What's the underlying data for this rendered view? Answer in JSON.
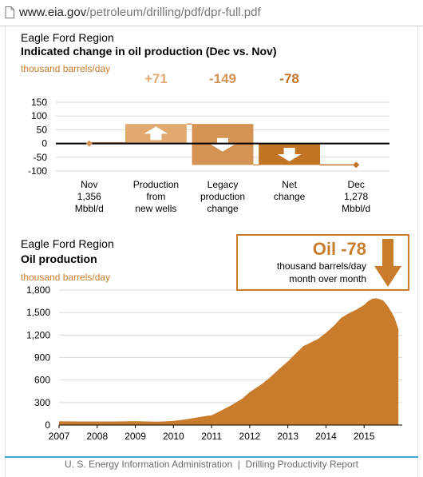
{
  "browser": {
    "url_host": "www.eia.gov",
    "url_path": "/petroleum/drilling/pdf/dpr-full.pdf"
  },
  "colors": {
    "accent": "#c97c2c",
    "light": "#e1a970",
    "mid": "#d49353",
    "dark": "#c07424",
    "footer_line": "#3aa6d8"
  },
  "chart_data": [
    {
      "type": "bar",
      "title": "Eagle Ford Region",
      "subtitle": "Indicated change in oil production (Dec vs. Nov)",
      "ylabel": "thousand barrels/day",
      "ylim": [
        -100,
        150
      ],
      "yticks": [
        "150",
        "100",
        "50",
        "0",
        "-50",
        "-100"
      ],
      "categories": [
        {
          "id": "nov",
          "lines": [
            "Nov",
            "1,356",
            "Mbbl/d"
          ]
        },
        {
          "id": "new",
          "lines": [
            "Production",
            "from",
            "new wells"
          ]
        },
        {
          "id": "legacy",
          "lines": [
            "Legacy",
            "production",
            "change"
          ]
        },
        {
          "id": "net",
          "lines": [
            "Net",
            "change"
          ]
        },
        {
          "id": "dec",
          "lines": [
            "Dec",
            "1,278",
            "Mbbl/d"
          ]
        }
      ],
      "waterfall": [
        {
          "category": "new",
          "start": 0,
          "end": 71,
          "label": "+71",
          "direction": "up"
        },
        {
          "category": "legacy",
          "start": 71,
          "end": -78,
          "label": "-149",
          "direction": "down"
        },
        {
          "category": "net",
          "start": 0,
          "end": -78,
          "label": "-78",
          "direction": "down"
        }
      ],
      "markers": {
        "nov": 0,
        "dec": -78
      },
      "grid": true
    },
    {
      "type": "area",
      "title": "Eagle Ford Region",
      "subtitle": "Oil production",
      "ylabel": "thousand barrels/day",
      "ylim": [
        0,
        1800
      ],
      "yticks": [
        "0",
        "300",
        "600",
        "900",
        "1,200",
        "1,500",
        "1,800"
      ],
      "xticks": [
        "2007",
        "2008",
        "2009",
        "2010",
        "2011",
        "2012",
        "2013",
        "2014",
        "2015"
      ],
      "xlim": [
        2007.0,
        2016.0
      ],
      "grid": true,
      "x": [
        2007.0,
        2007.5,
        2008.0,
        2008.5,
        2009.0,
        2009.3,
        2009.6,
        2009.9,
        2010.0,
        2010.3,
        2010.6,
        2010.9,
        2011.0,
        2011.2,
        2011.5,
        2011.8,
        2012.0,
        2012.3,
        2012.5,
        2012.8,
        2013.0,
        2013.2,
        2013.4,
        2013.6,
        2013.8,
        2014.0,
        2014.2,
        2014.4,
        2014.6,
        2014.8,
        2015.0,
        2015.1,
        2015.2,
        2015.3,
        2015.4,
        2015.5,
        2015.6,
        2015.7,
        2015.8,
        2015.9
      ],
      "y": [
        50,
        48,
        48,
        48,
        52,
        48,
        45,
        52,
        55,
        75,
        100,
        125,
        130,
        180,
        260,
        350,
        440,
        540,
        620,
        760,
        850,
        950,
        1050,
        1100,
        1150,
        1230,
        1320,
        1430,
        1490,
        1540,
        1600,
        1650,
        1680,
        1690,
        1680,
        1660,
        1600,
        1520,
        1430,
        1278
      ]
    }
  ],
  "callout": {
    "headline": "Oil -78",
    "line1": "thousand barrels/day",
    "line2": "month over month"
  },
  "footer": {
    "text": "U. S. Energy Information Administration  |  Drilling Productivity Report"
  }
}
